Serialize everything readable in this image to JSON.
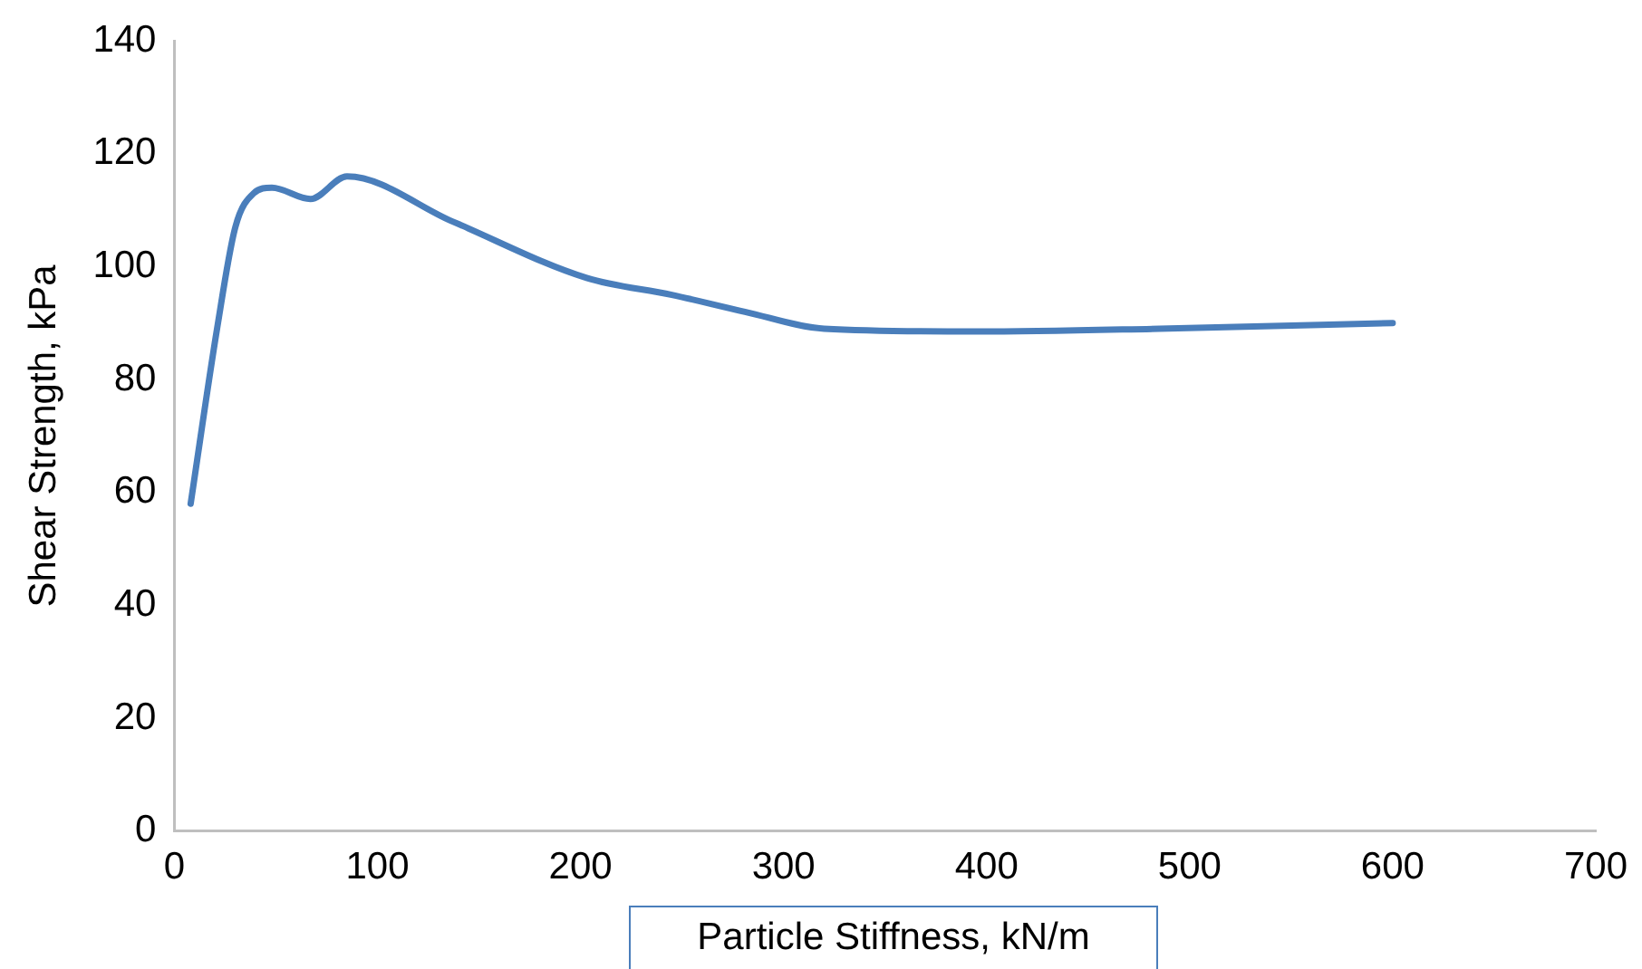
{
  "chart_data": {
    "type": "line",
    "xlabel": "Particle Stiffness, kN/m",
    "ylabel": "Shear Strength, kPa",
    "x": [
      8,
      21,
      30,
      39,
      48,
      67,
      85,
      137,
      203,
      245,
      281,
      320,
      395,
      485,
      600
    ],
    "series": [
      {
        "color": "#4a7ebb",
        "values": [
          58,
          89,
          107,
          113,
          114,
          112,
          116,
          108,
          98,
          95,
          92,
          89,
          88.5,
          89,
          90
        ]
      }
    ],
    "xlim": [
      0,
      700
    ],
    "xticks": [
      0,
      100,
      200,
      300,
      400,
      500,
      600,
      700
    ],
    "ylim": [
      0,
      140
    ],
    "yticks": [
      0,
      20,
      40,
      60,
      80,
      100,
      120,
      140
    ],
    "grid": false,
    "legend": false,
    "marker": "none",
    "line_style": "solid"
  }
}
